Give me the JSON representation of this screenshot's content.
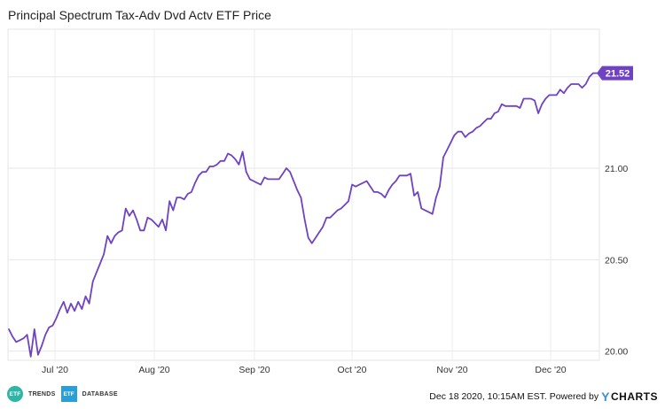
{
  "chart_data": {
    "type": "line",
    "title": "Principal Spectrum Tax-Adv Dvd Actv ETF Price",
    "x_ticks": [
      "Jul '20",
      "Aug '20",
      "Sep '20",
      "Oct '20",
      "Nov '20",
      "Dec '20"
    ],
    "y_ticks": [
      "20.00",
      "20.50",
      "21.00"
    ],
    "ylim": [
      19.95,
      21.76
    ],
    "last_value_label": "21.52",
    "series": [
      {
        "color": "#6f42c1",
        "values": [
          20.12,
          20.08,
          20.05,
          20.06,
          20.07,
          20.09,
          19.97,
          20.12,
          19.98,
          20.03,
          20.09,
          20.13,
          20.14,
          20.18,
          20.23,
          20.27,
          20.21,
          20.26,
          20.22,
          20.27,
          20.23,
          20.3,
          20.26,
          20.38,
          20.43,
          20.48,
          20.53,
          20.63,
          20.59,
          20.63,
          20.65,
          20.66,
          20.78,
          20.74,
          20.77,
          20.72,
          20.66,
          20.66,
          20.73,
          20.72,
          20.7,
          20.68,
          20.72,
          20.66,
          20.82,
          20.77,
          20.84,
          20.84,
          20.83,
          20.86,
          20.87,
          20.92,
          20.96,
          20.98,
          20.98,
          21.01,
          21.01,
          21.02,
          21.04,
          21.04,
          21.08,
          21.07,
          21.05,
          21.02,
          21.09,
          20.98,
          20.94,
          20.93,
          20.92,
          20.91,
          20.95,
          20.94,
          20.94,
          20.94,
          20.94,
          20.97,
          21.0,
          20.98,
          20.93,
          20.88,
          20.84,
          20.72,
          20.62,
          20.59,
          20.62,
          20.65,
          20.68,
          20.73,
          20.73,
          20.75,
          20.77,
          20.78,
          20.8,
          20.82,
          20.91,
          20.9,
          20.91,
          20.92,
          20.93,
          20.9,
          20.87,
          20.87,
          20.86,
          20.84,
          20.88,
          20.91,
          20.93,
          20.96,
          20.96,
          20.96,
          20.97,
          20.85,
          20.87,
          20.78,
          20.77,
          20.76,
          20.75,
          20.84,
          20.9,
          21.06,
          21.1,
          21.14,
          21.18,
          21.2,
          21.2,
          21.17,
          21.19,
          21.2,
          21.22,
          21.23,
          21.25,
          21.27,
          21.27,
          21.3,
          21.31,
          21.35,
          21.34,
          21.34,
          21.34,
          21.34,
          21.33,
          21.38,
          21.38,
          21.38,
          21.37,
          21.3,
          21.35,
          21.38,
          21.4,
          21.4,
          21.4,
          21.43,
          21.41,
          21.44,
          21.46,
          21.46,
          21.46,
          21.44,
          21.46,
          21.5,
          21.52,
          21.52
        ]
      }
    ],
    "grid": true,
    "legend": "none"
  },
  "footer": {
    "logo1_badge": "ETF",
    "logo1_word": "TRENDS",
    "logo2_badge": "ETF",
    "logo2_word": "DATABASE",
    "attribution": "Dec 18 2020, 10:15AM EST. Powered by",
    "brand_y": "Y",
    "brand_rest": "CHARTS"
  }
}
